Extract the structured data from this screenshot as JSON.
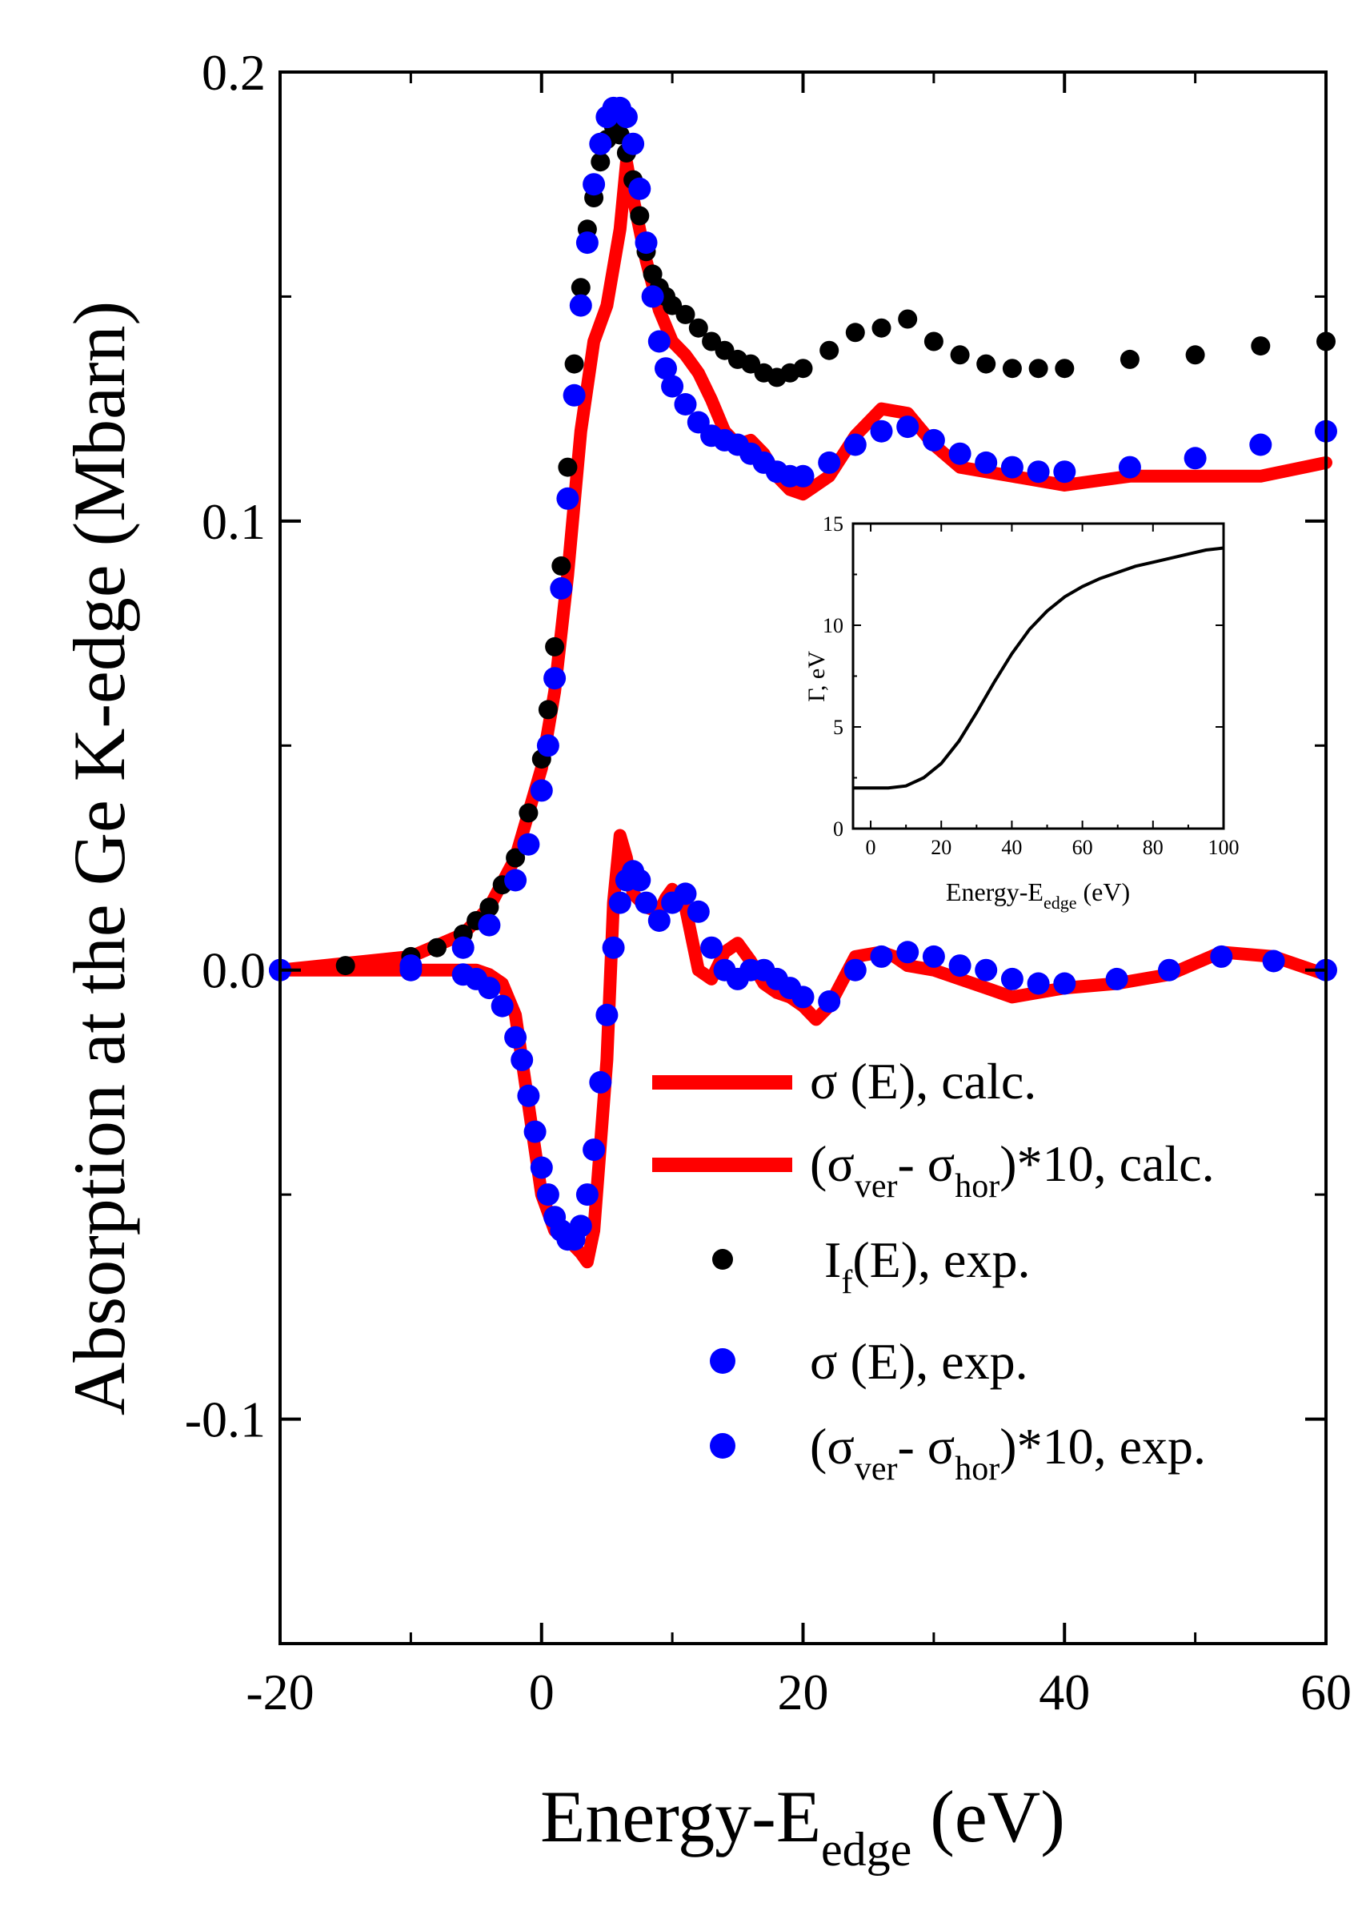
{
  "chart_data": [
    {
      "type": "scatter",
      "xlabel": {
        "base": "Energy-E",
        "sub": "edge",
        "tail": " (eV)"
      },
      "ylabel": "Absorption at the  Ge K-edge (Mbarn)",
      "xlim": [
        -20,
        60
      ],
      "ylim": [
        -0.15,
        0.2
      ],
      "x_ticks": [
        "-20",
        "0",
        "20",
        "40",
        "60"
      ],
      "y_ticks": [
        "-0.1",
        "0.0",
        "0.1",
        "0.2"
      ],
      "series": [
        {
          "name": "σ (E), calc.",
          "style": "line",
          "color": "#ff0000",
          "x": [
            -20,
            -10,
            -6,
            -4,
            -2,
            0,
            1,
            2,
            3,
            4,
            5,
            6,
            6.5,
            7,
            8,
            9,
            10,
            11,
            12,
            13,
            14,
            15,
            16,
            17,
            18,
            19,
            20,
            22,
            24,
            26,
            28,
            30,
            32,
            34,
            36,
            38,
            40,
            45,
            50,
            55,
            60
          ],
          "y": [
            0.0,
            0.003,
            0.008,
            0.014,
            0.025,
            0.045,
            0.062,
            0.088,
            0.12,
            0.14,
            0.148,
            0.165,
            0.18,
            0.172,
            0.158,
            0.147,
            0.14,
            0.137,
            0.133,
            0.127,
            0.12,
            0.117,
            0.118,
            0.115,
            0.11,
            0.107,
            0.106,
            0.11,
            0.119,
            0.125,
            0.124,
            0.117,
            0.112,
            0.111,
            0.11,
            0.109,
            0.108,
            0.11,
            0.11,
            0.11,
            0.113
          ]
        },
        {
          "name": "(σ_ver - σ_hor)*10, calc.",
          "style": "line",
          "color": "#ff0000",
          "x": [
            -20,
            -5,
            -4,
            -3,
            -2,
            -1,
            0,
            1,
            2,
            3,
            3.5,
            4,
            5,
            5.5,
            6,
            6.5,
            7,
            8,
            9,
            9.5,
            10,
            11,
            12,
            13,
            14,
            15,
            16,
            17,
            18,
            19,
            20,
            21,
            22,
            24,
            26,
            27,
            28,
            30,
            32,
            34,
            36,
            38,
            40,
            44,
            48,
            52,
            56,
            60
          ],
          "y": [
            0.0,
            0.0,
            -0.001,
            -0.003,
            -0.01,
            -0.03,
            -0.05,
            -0.058,
            -0.06,
            -0.063,
            -0.065,
            -0.058,
            -0.02,
            0.015,
            0.03,
            0.025,
            0.017,
            0.014,
            0.013,
            0.016,
            0.018,
            0.014,
            0.0,
            -0.002,
            0.004,
            0.006,
            0.002,
            -0.003,
            -0.005,
            -0.006,
            -0.008,
            -0.011,
            -0.008,
            0.003,
            0.004,
            0.003,
            0.001,
            0.0,
            -0.002,
            -0.004,
            -0.006,
            -0.005,
            -0.004,
            -0.003,
            -0.001,
            0.004,
            0.003,
            -0.001
          ]
        },
        {
          "name": "I_f(E), exp.",
          "style": "marker",
          "color": "#000000",
          "x": [
            -20,
            -15,
            -10,
            -8,
            -6,
            -5,
            -4,
            -3,
            -2,
            -1,
            0,
            0.5,
            1,
            1.5,
            2,
            2.5,
            3,
            3.5,
            4,
            4.5,
            5,
            5.5,
            6,
            6.5,
            7,
            7.5,
            8,
            8.5,
            9,
            9.5,
            10,
            11,
            12,
            13,
            14,
            15,
            16,
            17,
            18,
            19,
            20,
            22,
            24,
            26,
            28,
            30,
            32,
            34,
            36,
            38,
            40,
            45,
            50,
            55,
            60
          ],
          "y": [
            0.0,
            0.001,
            0.003,
            0.005,
            0.008,
            0.011,
            0.014,
            0.019,
            0.025,
            0.035,
            0.047,
            0.058,
            0.072,
            0.09,
            0.112,
            0.135,
            0.152,
            0.165,
            0.172,
            0.18,
            0.185,
            0.188,
            0.186,
            0.182,
            0.176,
            0.168,
            0.16,
            0.155,
            0.152,
            0.15,
            0.148,
            0.146,
            0.143,
            0.14,
            0.138,
            0.136,
            0.135,
            0.133,
            0.132,
            0.133,
            0.134,
            0.138,
            0.142,
            0.143,
            0.145,
            0.14,
            0.137,
            0.135,
            0.134,
            0.134,
            0.134,
            0.136,
            0.137,
            0.139,
            0.14
          ]
        },
        {
          "name": "σ (E), exp.",
          "style": "marker",
          "color": "#0000ff",
          "x": [
            -20,
            -10,
            -6,
            -4,
            -2,
            -1,
            0,
            0.5,
            1,
            1.5,
            2,
            2.5,
            3,
            3.5,
            4,
            4.5,
            5,
            5.5,
            6,
            6.5,
            7,
            7.5,
            8,
            8.5,
            9,
            9.5,
            10,
            11,
            12,
            13,
            14,
            15,
            16,
            17,
            18,
            19,
            20,
            22,
            24,
            26,
            28,
            30,
            32,
            34,
            36,
            38,
            40,
            45,
            50,
            55,
            60
          ],
          "y": [
            0.0,
            0.001,
            0.005,
            0.01,
            0.02,
            0.028,
            0.04,
            0.05,
            0.065,
            0.085,
            0.105,
            0.128,
            0.148,
            0.162,
            0.175,
            0.184,
            0.19,
            0.192,
            0.192,
            0.19,
            0.184,
            0.174,
            0.162,
            0.15,
            0.14,
            0.134,
            0.13,
            0.126,
            0.122,
            0.119,
            0.118,
            0.117,
            0.115,
            0.113,
            0.111,
            0.11,
            0.11,
            0.113,
            0.117,
            0.12,
            0.121,
            0.118,
            0.115,
            0.113,
            0.112,
            0.111,
            0.111,
            0.112,
            0.114,
            0.117,
            0.12
          ]
        },
        {
          "name": "(σ_ver - σ_hor)*10, exp.",
          "style": "marker",
          "color": "#0000ff",
          "x": [
            -20,
            -10,
            -6,
            -5,
            -4,
            -3,
            -2,
            -1.5,
            -1,
            -0.5,
            0,
            0.5,
            1,
            1.5,
            2,
            2.5,
            3,
            3.5,
            4,
            4.5,
            5,
            5.5,
            6,
            6.5,
            7,
            7.5,
            8,
            9,
            10,
            11,
            12,
            13,
            14,
            15,
            16,
            17,
            18,
            19,
            20,
            22,
            24,
            26,
            28,
            30,
            32,
            34,
            36,
            38,
            40,
            44,
            48,
            52,
            56,
            60
          ],
          "y": [
            0.0,
            0.0,
            -0.001,
            -0.002,
            -0.004,
            -0.008,
            -0.015,
            -0.02,
            -0.028,
            -0.036,
            -0.044,
            -0.05,
            -0.055,
            -0.058,
            -0.06,
            -0.06,
            -0.057,
            -0.05,
            -0.04,
            -0.025,
            -0.01,
            0.005,
            0.015,
            0.02,
            0.022,
            0.02,
            0.015,
            0.011,
            0.015,
            0.017,
            0.013,
            0.005,
            0.0,
            -0.002,
            0.0,
            0.0,
            -0.002,
            -0.004,
            -0.006,
            -0.007,
            0.0,
            0.003,
            0.004,
            0.003,
            0.001,
            0.0,
            -0.002,
            -0.003,
            -0.003,
            -0.002,
            0.0,
            0.003,
            0.002,
            0.0
          ]
        }
      ]
    },
    {
      "type": "line",
      "xlabel": {
        "base": "Energy-E",
        "sub": "edge",
        "tail": " (eV)"
      },
      "ylabel": "Γ, eV",
      "xlim": [
        -5,
        100
      ],
      "ylim": [
        0,
        15
      ],
      "x_ticks": [
        "0",
        "20",
        "40",
        "60",
        "80",
        "100"
      ],
      "y_ticks": [
        "0",
        "5",
        "10",
        "15"
      ],
      "series": [
        {
          "style": "line",
          "color": "#000000",
          "x": [
            -5,
            0,
            5,
            10,
            15,
            20,
            25,
            30,
            35,
            40,
            45,
            50,
            55,
            60,
            65,
            70,
            75,
            80,
            85,
            90,
            95,
            100
          ],
          "y": [
            2.0,
            2.0,
            2.0,
            2.1,
            2.5,
            3.2,
            4.3,
            5.7,
            7.2,
            8.6,
            9.8,
            10.7,
            11.4,
            11.9,
            12.3,
            12.6,
            12.9,
            13.1,
            13.3,
            13.5,
            13.7,
            13.8
          ]
        }
      ]
    }
  ],
  "legend": {
    "placement": "lower-right",
    "entries": [
      {
        "style": "line",
        "color": "#ff0000",
        "text": "σ (E), calc."
      },
      {
        "style": "line",
        "color": "#ff0000",
        "text": "(σ",
        "sub1": "ver",
        "mid": "- σ",
        "sub2": "hor",
        "tail": ")*10, calc."
      },
      {
        "style": "marker",
        "color": "#000000",
        "text": "I",
        "sub1": "f",
        "tail": "(E), exp."
      },
      {
        "style": "marker",
        "color": "#0000ff",
        "text": "σ (E), exp."
      },
      {
        "style": "marker",
        "color": "#0000ff",
        "text": "(σ",
        "sub1": "ver",
        "mid": "- σ",
        "sub2": "hor",
        "tail": ")*10, exp."
      }
    ]
  }
}
